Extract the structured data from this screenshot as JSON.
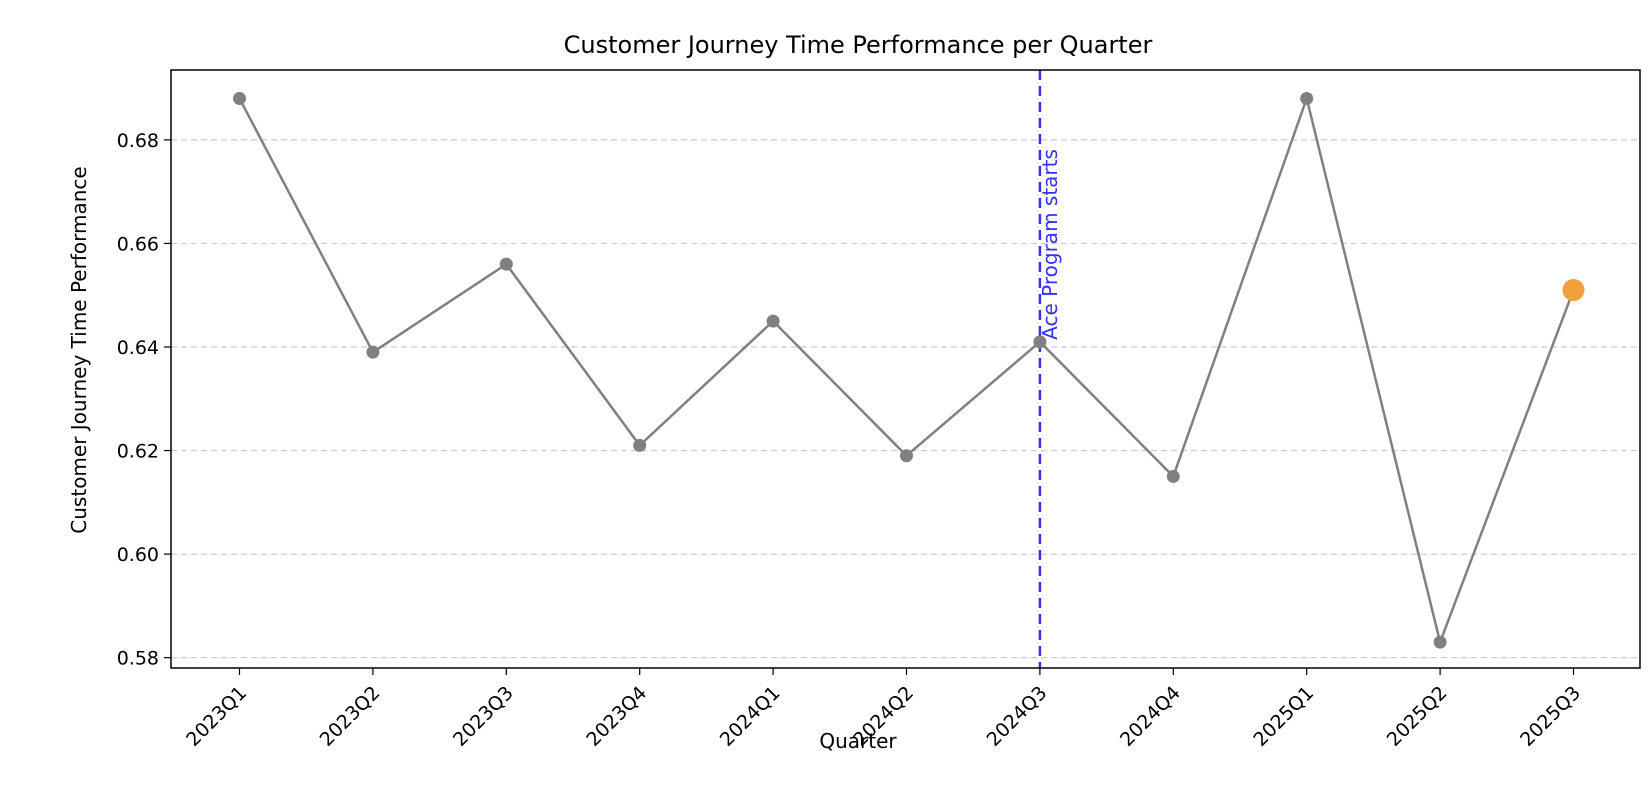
{
  "chart_data": {
    "type": "line",
    "title": "Customer Journey Time Performance per Quarter",
    "xlabel": "Quarter",
    "ylabel": "Customer Journey Time Performance",
    "categories": [
      "2023Q1",
      "2023Q2",
      "2023Q3",
      "2023Q4",
      "2024Q1",
      "2024Q2",
      "2024Q3",
      "2024Q4",
      "2025Q1",
      "2025Q2",
      "2025Q3"
    ],
    "values": [
      0.688,
      0.639,
      0.656,
      0.621,
      0.645,
      0.619,
      0.641,
      0.615,
      0.688,
      0.583,
      0.651
    ],
    "ylim": [
      0.578,
      0.6935
    ],
    "yticks": [
      0.58,
      0.6,
      0.62,
      0.64,
      0.66,
      0.68
    ],
    "ytick_labels": [
      "0.58",
      "0.60",
      "0.62",
      "0.64",
      "0.66",
      "0.68"
    ],
    "grid": "horizontal-dashed",
    "highlight_last_point": true,
    "annotation": {
      "text": "Ace Program starts",
      "category": "2024Q3"
    },
    "colors": {
      "line": "#808080",
      "marker": "#808080",
      "highlight": "#f2a03d",
      "annotation": "#3333ee",
      "grid": "#cccccc"
    }
  }
}
